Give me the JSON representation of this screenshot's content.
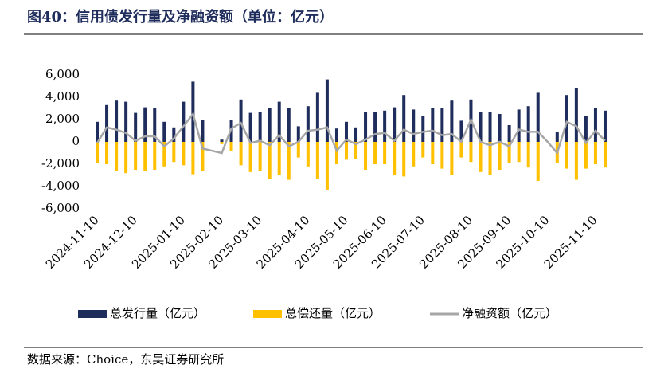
{
  "chart_data": {
    "type": "bar",
    "title": "图40：信用债发行量及净融资额（单位：亿元）",
    "source": "数据来源：Choice，东吴证券研究所",
    "categories": [
      "2024-11-10",
      null,
      null,
      null,
      "2024-12-10",
      null,
      null,
      null,
      null,
      "2025-01-10",
      null,
      null,
      null,
      "2025-02-10",
      null,
      null,
      null,
      "2025-03-10",
      null,
      null,
      null,
      null,
      "2025-04-10",
      null,
      null,
      null,
      "2025-05-10",
      null,
      null,
      null,
      "2025-06-10",
      null,
      null,
      null,
      "2025-07-10",
      null,
      null,
      null,
      null,
      "2025-08-10",
      null,
      null,
      null,
      "2025-09-10",
      null,
      null,
      null,
      "2025-10-10",
      null,
      null,
      null,
      null,
      "2025-11-10",
      null
    ],
    "series": [
      {
        "name": "总发行量（亿元）",
        "color": "#1f2d5c",
        "values": [
          1800,
          3300,
          3700,
          3600,
          2600,
          3100,
          3000,
          1800,
          1300,
          3600,
          5400,
          2000,
          0,
          200,
          2000,
          3800,
          2600,
          2700,
          3000,
          3600,
          3000,
          1400,
          3200,
          4400,
          5600,
          1200,
          1800,
          1300,
          2700,
          2700,
          2800,
          3100,
          4200,
          2900,
          2300,
          3000,
          3000,
          3700,
          1900,
          3800,
          2700,
          2700,
          2500,
          1500,
          2900,
          3200,
          4400,
          0,
          900,
          4200,
          4800,
          2300,
          3000,
          2800
        ]
      },
      {
        "name": "总偿还量（亿元）",
        "color": "#ffc000",
        "values": [
          -1900,
          -2000,
          -2600,
          -2800,
          -2500,
          -2600,
          -2500,
          -2200,
          -1800,
          -2100,
          -2900,
          -2600,
          0,
          -200,
          -800,
          -2100,
          -2700,
          -2600,
          -3300,
          -3000,
          -3400,
          -1400,
          -2200,
          -3300,
          -4300,
          -2000,
          -1600,
          -1500,
          -2500,
          -2000,
          -2000,
          -3000,
          -3100,
          -2200,
          -1400,
          -2000,
          -2400,
          -3000,
          -1400,
          -1800,
          -2700,
          -3000,
          -2500,
          -1900,
          -1800,
          -2300,
          -3500,
          0,
          -1900,
          -2400,
          -3400,
          -2400,
          -2000,
          -2300
        ]
      },
      {
        "name": "净融资额（亿元）",
        "color": "#a6a6a6",
        "type": "line",
        "values": [
          -100,
          1300,
          1100,
          800,
          100,
          500,
          500,
          -400,
          300,
          1400,
          2500,
          -600,
          -800,
          -1000,
          1200,
          1700,
          -100,
          100,
          -300,
          600,
          -400,
          0,
          1000,
          1100,
          1300,
          -800,
          200,
          -200,
          200,
          700,
          800,
          100,
          1100,
          700,
          900,
          1000,
          600,
          700,
          0,
          2000,
          0,
          -300,
          0,
          -400,
          1100,
          900,
          900,
          0,
          -1000,
          1800,
          1400,
          -100,
          1000,
          100
        ]
      }
    ],
    "ylim": [
      -6000,
      6000
    ],
    "yticks": [
      {
        "value": 6000,
        "label": "6,000"
      },
      {
        "value": 4000,
        "label": "4,000"
      },
      {
        "value": 2000,
        "label": "2,000"
      },
      0,
      {
        "value": -2000,
        "label": "-2,000"
      },
      {
        "value": -4000,
        "label": "-4,000"
      },
      {
        "value": -6000,
        "label": "-6,000"
      }
    ],
    "grid": false
  }
}
